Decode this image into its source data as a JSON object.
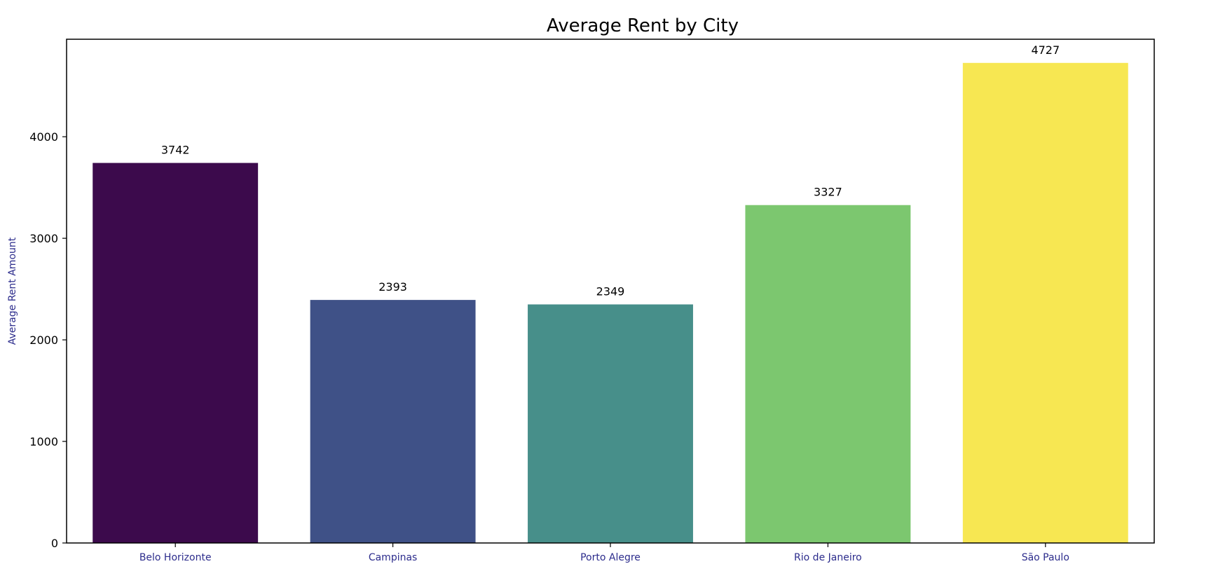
{
  "chart_data": {
    "type": "bar",
    "title": "Average Rent by City",
    "xlabel": "",
    "ylabel": "Average Rent Amount",
    "categories": [
      "Belo Horizonte",
      "Campinas",
      "Porto Alegre",
      "Rio de Janeiro",
      "São Paulo"
    ],
    "values": [
      3742,
      2393,
      2349,
      3327,
      4727
    ],
    "data_labels": [
      "3742",
      "2393",
      "2349",
      "3327",
      "4727"
    ],
    "colors": [
      "#3c0a4c",
      "#3f5187",
      "#478f8a",
      "#7cc76f",
      "#f7e752"
    ],
    "ylim": [
      0,
      4960
    ],
    "yticks": [
      0,
      1000,
      2000,
      3000,
      4000
    ],
    "grid": false,
    "legend": "none"
  }
}
